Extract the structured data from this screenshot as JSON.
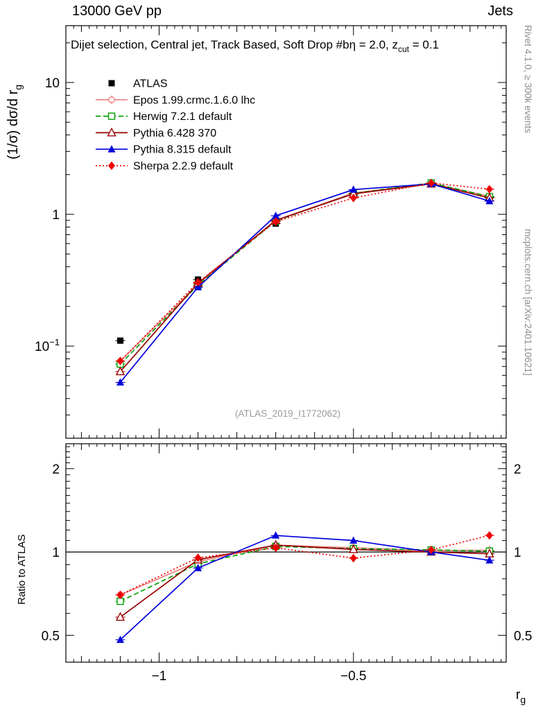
{
  "header": {
    "left_title": "13000 GeV pp",
    "right_title": "Jets"
  },
  "main_title": {
    "part1": "Dijet selection, Central jet, Track Based, Soft Drop #bη = 2.0, z",
    "sub": "cut",
    "part2": " = 0.1"
  },
  "axis_labels": {
    "y_main": "(1/σ) dσ/d r",
    "y_main_sub": "g",
    "y_ratio": "Ratio to ATLAS",
    "x": "r",
    "x_sub": "g"
  },
  "side_notes": {
    "right_top": "Rivet 4.1.0, ≥ 300k events",
    "right_bottom": "mcplots.cern.ch [arXiv:2401.10621]"
  },
  "watermark": "(ATLAS_2019_I1772062)",
  "chart_data": {
    "type": "line",
    "title": "Dijet selection, Central jet, Track Based, Soft Drop #bη = 2.0, z_cut = 0.1",
    "xlabel": "r_g",
    "ylabel": "(1/σ) dσ/d r_g",
    "ratio_ylabel": "Ratio to ATLAS",
    "legend_position": "top-left",
    "grid": false,
    "xlim": [
      -1.24,
      -0.107
    ],
    "x_values": [
      -1.1,
      -0.9,
      -0.7,
      -0.5,
      -0.3,
      -0.15
    ],
    "x_ticks": [
      {
        "value": -1,
        "label": "−1"
      },
      {
        "value": -0.5,
        "label": "−0.5"
      }
    ],
    "main_panel": {
      "yscale": "log",
      "ylim": [
        0.02,
        27
      ],
      "y_ticks": [
        {
          "value": 10,
          "label": "10"
        },
        {
          "value": 1,
          "label": "1"
        },
        {
          "value": 0.1,
          "label": "10^-1"
        }
      ]
    },
    "ratio_panel": {
      "yscale": "log",
      "ylim": [
        0.4,
        2.46
      ],
      "reference_line": 1,
      "y_ticks": [
        {
          "value": 2,
          "label": "2"
        },
        {
          "value": 1,
          "label": "1"
        },
        {
          "value": 0.5,
          "label": "0.5"
        }
      ]
    },
    "series": [
      {
        "name": "ATLAS",
        "color": "#000000",
        "marker": "square-filled",
        "line_style": "none",
        "is_reference": true,
        "values": [
          0.11,
          0.32,
          0.85,
          1.4,
          1.7,
          1.35
        ]
      },
      {
        "name": "Epos 1.99.crmc.1.6.0 lhc",
        "color": "#f08080",
        "marker": "circle-cross-open",
        "line_style": "solid",
        "is_reference": false,
        "values": [
          0.077,
          0.295,
          0.9,
          1.45,
          1.72,
          1.37
        ]
      },
      {
        "name": "Herwig 7.2.1 default",
        "color": "#00a000",
        "marker": "square-open",
        "line_style": "dashed",
        "is_reference": false,
        "values": [
          0.073,
          0.29,
          0.89,
          1.44,
          1.73,
          1.36
        ]
      },
      {
        "name": "Pythia 6.428 370",
        "color": "#990000",
        "marker": "triangle-open",
        "line_style": "solid",
        "is_reference": false,
        "values": [
          0.064,
          0.3,
          0.9,
          1.43,
          1.7,
          1.33
        ]
      },
      {
        "name": "Pythia 8.315 default",
        "color": "#0000dd",
        "marker": "triangle-filled",
        "line_style": "solid",
        "is_reference": false,
        "values": [
          0.053,
          0.28,
          0.975,
          1.54,
          1.7,
          1.26
        ]
      },
      {
        "name": "Sherpa 2.2.9 default",
        "color": "#ee0000",
        "marker": "diamond-filled",
        "line_style": "dotted",
        "is_reference": false,
        "values": [
          0.077,
          0.305,
          0.88,
          1.33,
          1.73,
          1.55
        ]
      }
    ]
  }
}
